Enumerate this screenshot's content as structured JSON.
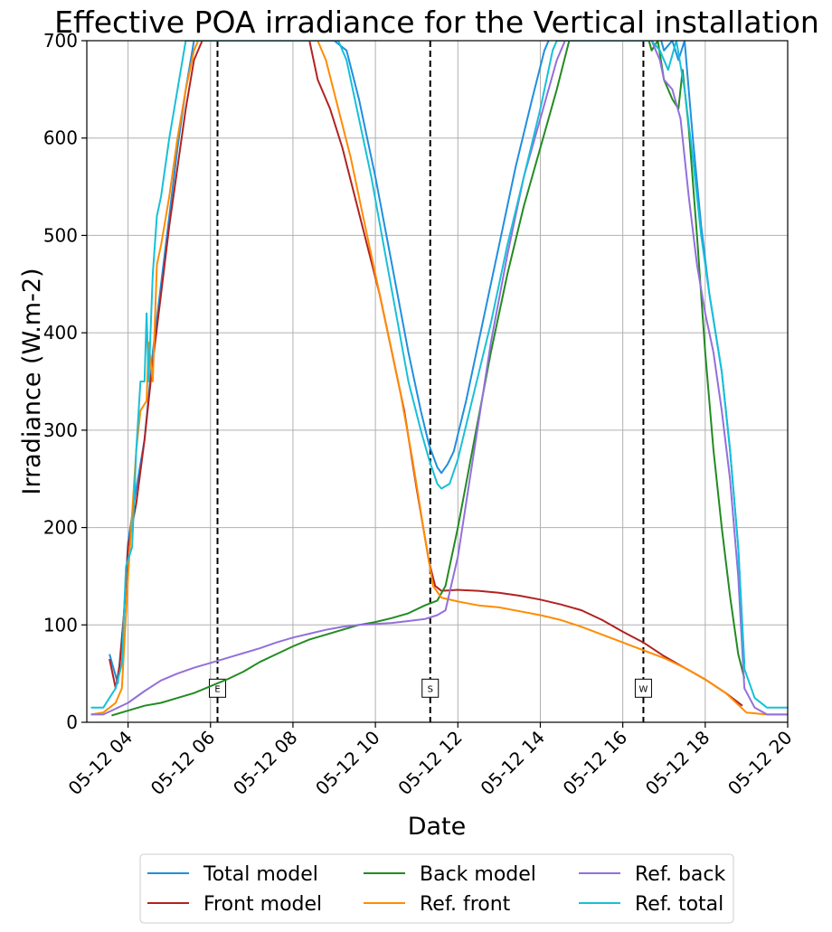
{
  "chart_data": {
    "type": "line",
    "title": "Effective POA irradiance for the Vertical installation",
    "xlabel": "Date",
    "ylabel": "Irradiance (W.m-2)",
    "x_unit": "hour of day 05-12",
    "xlim": [
      3.0,
      20.0
    ],
    "ylim": [
      0,
      700
    ],
    "xticks": [
      4,
      6,
      8,
      10,
      12,
      14,
      16,
      18,
      20
    ],
    "xtick_labels": [
      "05-12 04",
      "05-12 06",
      "05-12 08",
      "05-12 10",
      "05-12 12",
      "05-12 14",
      "05-12 16",
      "05-12 18",
      "05-12 20"
    ],
    "yticks": [
      0,
      100,
      200,
      300,
      400,
      500,
      600,
      700
    ],
    "ytick_labels": [
      "0",
      "100",
      "200",
      "300",
      "400",
      "500",
      "600",
      "700"
    ],
    "grid": true,
    "legend_position": "below plot, 3 columns",
    "vlines": [
      {
        "x": 6.17,
        "label": "E"
      },
      {
        "x": 11.33,
        "label": "S"
      },
      {
        "x": 16.5,
        "label": "W"
      }
    ],
    "series": [
      {
        "name": "Total model",
        "color": "#1f8fe0",
        "points": [
          [
            3.55,
            70
          ],
          [
            3.75,
            40
          ],
          [
            3.9,
            110
          ],
          [
            4.0,
            185
          ],
          [
            4.2,
            240
          ],
          [
            4.4,
            290
          ],
          [
            4.6,
            380
          ],
          [
            4.8,
            450
          ],
          [
            5.0,
            520
          ],
          [
            5.2,
            590
          ],
          [
            5.4,
            650
          ],
          [
            5.6,
            700
          ],
          [
            8.5,
            700
          ],
          [
            9.0,
            700
          ],
          [
            9.3,
            690
          ],
          [
            9.6,
            640
          ],
          [
            10.0,
            560
          ],
          [
            10.4,
            470
          ],
          [
            10.8,
            380
          ],
          [
            11.1,
            320
          ],
          [
            11.3,
            285
          ],
          [
            11.5,
            262
          ],
          [
            11.6,
            256
          ],
          [
            11.75,
            265
          ],
          [
            11.9,
            278
          ],
          [
            12.2,
            330
          ],
          [
            12.6,
            410
          ],
          [
            13.0,
            490
          ],
          [
            13.4,
            570
          ],
          [
            13.8,
            640
          ],
          [
            14.1,
            690
          ],
          [
            14.2,
            700
          ],
          [
            14.4,
            720
          ],
          [
            16.8,
            720
          ],
          [
            17.0,
            690
          ],
          [
            17.2,
            700
          ],
          [
            17.35,
            680
          ],
          [
            17.5,
            700
          ],
          [
            17.7,
            600
          ],
          [
            17.9,
            510
          ],
          [
            18.1,
            440
          ],
          [
            18.4,
            360
          ],
          [
            18.6,
            280
          ],
          [
            18.8,
            180
          ],
          [
            18.95,
            60
          ]
        ]
      },
      {
        "name": "Front model",
        "color": "#b22222",
        "points": [
          [
            3.55,
            65
          ],
          [
            3.7,
            35
          ],
          [
            3.8,
            60
          ],
          [
            3.9,
            110
          ],
          [
            4.0,
            180
          ],
          [
            4.2,
            225
          ],
          [
            4.4,
            290
          ],
          [
            4.6,
            370
          ],
          [
            4.8,
            440
          ],
          [
            5.0,
            510
          ],
          [
            5.2,
            570
          ],
          [
            5.4,
            630
          ],
          [
            5.6,
            680
          ],
          [
            5.8,
            700
          ],
          [
            8.4,
            700
          ],
          [
            8.6,
            660
          ],
          [
            8.9,
            630
          ],
          [
            9.2,
            590
          ],
          [
            9.5,
            540
          ],
          [
            9.8,
            490
          ],
          [
            10.1,
            440
          ],
          [
            10.4,
            380
          ],
          [
            10.7,
            320
          ],
          [
            11.0,
            240
          ],
          [
            11.3,
            165
          ],
          [
            11.45,
            140
          ],
          [
            11.6,
            135
          ],
          [
            12.0,
            136
          ],
          [
            12.5,
            135
          ],
          [
            13.0,
            133
          ],
          [
            13.5,
            130
          ],
          [
            14.0,
            126
          ],
          [
            14.5,
            121
          ],
          [
            15.0,
            115
          ],
          [
            15.5,
            105
          ],
          [
            16.0,
            93
          ],
          [
            16.5,
            82
          ],
          [
            17.0,
            68
          ],
          [
            17.5,
            56
          ],
          [
            18.0,
            44
          ],
          [
            18.5,
            30
          ],
          [
            18.9,
            17
          ]
        ]
      },
      {
        "name": "Back model",
        "color": "#228b22",
        "points": [
          [
            3.6,
            7
          ],
          [
            4.0,
            12
          ],
          [
            4.4,
            17
          ],
          [
            4.8,
            20
          ],
          [
            5.2,
            25
          ],
          [
            5.6,
            30
          ],
          [
            6.0,
            37
          ],
          [
            6.4,
            44
          ],
          [
            6.8,
            52
          ],
          [
            7.2,
            62
          ],
          [
            7.6,
            70
          ],
          [
            8.0,
            78
          ],
          [
            8.4,
            85
          ],
          [
            8.8,
            90
          ],
          [
            9.2,
            95
          ],
          [
            9.6,
            100
          ],
          [
            10.0,
            103
          ],
          [
            10.4,
            107
          ],
          [
            10.8,
            112
          ],
          [
            11.2,
            120
          ],
          [
            11.5,
            125
          ],
          [
            11.7,
            140
          ],
          [
            12.0,
            200
          ],
          [
            12.4,
            290
          ],
          [
            12.8,
            380
          ],
          [
            13.2,
            460
          ],
          [
            13.6,
            530
          ],
          [
            14.0,
            590
          ],
          [
            14.4,
            650
          ],
          [
            14.7,
            700
          ],
          [
            14.9,
            720
          ],
          [
            16.5,
            720
          ],
          [
            16.7,
            690
          ],
          [
            16.85,
            700
          ],
          [
            17.0,
            660
          ],
          [
            17.2,
            640
          ],
          [
            17.35,
            630
          ],
          [
            17.45,
            670
          ],
          [
            17.6,
            610
          ],
          [
            17.8,
            500
          ],
          [
            18.0,
            380
          ],
          [
            18.2,
            280
          ],
          [
            18.4,
            200
          ],
          [
            18.6,
            130
          ],
          [
            18.8,
            70
          ],
          [
            18.95,
            45
          ]
        ]
      },
      {
        "name": "Ref. front",
        "color": "#ff8c00",
        "points": [
          [
            3.1,
            8
          ],
          [
            3.4,
            10
          ],
          [
            3.7,
            20
          ],
          [
            3.85,
            35
          ],
          [
            4.0,
            150
          ],
          [
            4.2,
            280
          ],
          [
            4.3,
            320
          ],
          [
            4.45,
            330
          ],
          [
            4.5,
            390
          ],
          [
            4.6,
            350
          ],
          [
            4.7,
            470
          ],
          [
            4.8,
            490
          ],
          [
            5.0,
            540
          ],
          [
            5.2,
            600
          ],
          [
            5.4,
            650
          ],
          [
            5.6,
            690
          ],
          [
            5.7,
            700
          ],
          [
            8.6,
            700
          ],
          [
            8.8,
            680
          ],
          [
            9.1,
            630
          ],
          [
            9.4,
            580
          ],
          [
            9.7,
            520
          ],
          [
            10.0,
            460
          ],
          [
            10.3,
            400
          ],
          [
            10.6,
            340
          ],
          [
            10.9,
            270
          ],
          [
            11.2,
            190
          ],
          [
            11.4,
            140
          ],
          [
            11.6,
            128
          ],
          [
            12.0,
            124
          ],
          [
            12.5,
            120
          ],
          [
            13.0,
            118
          ],
          [
            13.5,
            114
          ],
          [
            14.0,
            110
          ],
          [
            14.5,
            105
          ],
          [
            15.0,
            98
          ],
          [
            15.5,
            90
          ],
          [
            16.0,
            82
          ],
          [
            16.5,
            74
          ],
          [
            17.0,
            66
          ],
          [
            17.5,
            56
          ],
          [
            18.0,
            44
          ],
          [
            18.5,
            30
          ],
          [
            19.0,
            10
          ],
          [
            19.5,
            8
          ],
          [
            20.0,
            8
          ]
        ]
      },
      {
        "name": "Ref. back",
        "color": "#9370db",
        "points": [
          [
            3.1,
            8
          ],
          [
            3.4,
            8
          ],
          [
            3.6,
            12
          ],
          [
            4.0,
            20
          ],
          [
            4.4,
            32
          ],
          [
            4.8,
            43
          ],
          [
            5.2,
            50
          ],
          [
            5.6,
            56
          ],
          [
            6.0,
            61
          ],
          [
            6.4,
            66
          ],
          [
            6.8,
            71
          ],
          [
            7.2,
            76
          ],
          [
            7.6,
            82
          ],
          [
            8.0,
            87
          ],
          [
            8.4,
            91
          ],
          [
            8.8,
            95
          ],
          [
            9.2,
            98
          ],
          [
            9.6,
            100
          ],
          [
            10.0,
            101
          ],
          [
            10.4,
            102
          ],
          [
            10.8,
            104
          ],
          [
            11.2,
            106
          ],
          [
            11.5,
            110
          ],
          [
            11.7,
            115
          ],
          [
            12.0,
            170
          ],
          [
            12.4,
            280
          ],
          [
            12.8,
            390
          ],
          [
            13.2,
            480
          ],
          [
            13.6,
            560
          ],
          [
            14.0,
            620
          ],
          [
            14.4,
            680
          ],
          [
            14.6,
            700
          ],
          [
            14.8,
            720
          ],
          [
            16.6,
            720
          ],
          [
            16.7,
            700
          ],
          [
            16.8,
            690
          ],
          [
            16.9,
            680
          ],
          [
            17.0,
            660
          ],
          [
            17.2,
            650
          ],
          [
            17.4,
            620
          ],
          [
            17.6,
            540
          ],
          [
            17.8,
            470
          ],
          [
            18.0,
            420
          ],
          [
            18.2,
            380
          ],
          [
            18.4,
            320
          ],
          [
            18.6,
            250
          ],
          [
            18.8,
            150
          ],
          [
            18.95,
            35
          ],
          [
            19.2,
            15
          ],
          [
            19.5,
            8
          ],
          [
            20.0,
            8
          ]
        ]
      },
      {
        "name": "Ref. total",
        "color": "#17c0d8",
        "points": [
          [
            3.1,
            15
          ],
          [
            3.4,
            15
          ],
          [
            3.7,
            35
          ],
          [
            3.85,
            60
          ],
          [
            3.95,
            160
          ],
          [
            4.1,
            180
          ],
          [
            4.2,
            280
          ],
          [
            4.3,
            350
          ],
          [
            4.4,
            350
          ],
          [
            4.45,
            420
          ],
          [
            4.5,
            350
          ],
          [
            4.6,
            460
          ],
          [
            4.7,
            520
          ],
          [
            4.8,
            540
          ],
          [
            5.0,
            600
          ],
          [
            5.2,
            650
          ],
          [
            5.4,
            700
          ],
          [
            9.1,
            700
          ],
          [
            9.3,
            680
          ],
          [
            9.6,
            620
          ],
          [
            9.9,
            560
          ],
          [
            10.2,
            490
          ],
          [
            10.5,
            420
          ],
          [
            10.8,
            350
          ],
          [
            11.1,
            300
          ],
          [
            11.3,
            270
          ],
          [
            11.5,
            245
          ],
          [
            11.6,
            240
          ],
          [
            11.8,
            245
          ],
          [
            12.0,
            270
          ],
          [
            12.4,
            340
          ],
          [
            12.8,
            410
          ],
          [
            13.2,
            490
          ],
          [
            13.6,
            560
          ],
          [
            14.0,
            630
          ],
          [
            14.3,
            690
          ],
          [
            14.4,
            700
          ],
          [
            16.7,
            700
          ],
          [
            16.9,
            690
          ],
          [
            17.1,
            670
          ],
          [
            17.3,
            700
          ],
          [
            17.5,
            650
          ],
          [
            17.7,
            580
          ],
          [
            17.9,
            500
          ],
          [
            18.1,
            440
          ],
          [
            18.4,
            360
          ],
          [
            18.6,
            280
          ],
          [
            18.8,
            180
          ],
          [
            18.95,
            55
          ],
          [
            19.2,
            25
          ],
          [
            19.5,
            15
          ],
          [
            20.0,
            15
          ]
        ]
      }
    ]
  }
}
